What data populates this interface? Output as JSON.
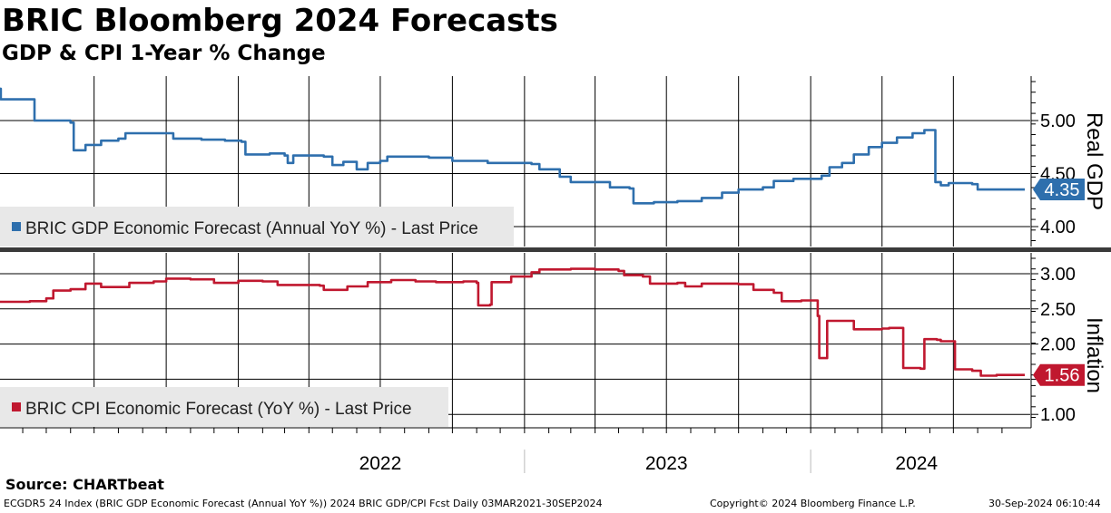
{
  "title": "BRIC Bloomberg 2024 Forecasts",
  "subtitle": "GDP & CPI 1-Year % Change",
  "source": "Source: CHARTbeat",
  "footer": {
    "left": "ECGDR5 24 Index (BRIC GDP Economic Forecast (Annual YoY %)) 2024 BRIC GDP/CPI Fcst  Daily 03MAR2021-30SEP2024",
    "middle": "Copyright© 2024 Bloomberg Finance L.P.",
    "right": "30-Sep-2024 06:10:44"
  },
  "colors": {
    "gdp": "#2e6fad",
    "cpi": "#c0182f",
    "grid": "#000000",
    "legend_bg": "#e8e8e8",
    "divider": "#3a3a3a"
  },
  "chart_data": [
    {
      "type": "line",
      "panel": "top",
      "axis_title": "Real GDP",
      "ylim": [
        3.8,
        5.4
      ],
      "yticks": [
        "5.00",
        "4.50",
        "4.00"
      ],
      "last_value_label": "4.35",
      "grid": true,
      "legend_placement": "lower-left",
      "series": [
        {
          "name": "BRIC GDP Economic Forecast (Annual YoY %) - Last Price",
          "color": "#2e6fad",
          "points": [
            [
              "2021-03-03",
              5.3
            ],
            [
              "2021-03-04",
              5.2
            ],
            [
              "2021-04-15",
              5.2
            ],
            [
              "2021-04-16",
              5.0
            ],
            [
              "2021-06-01",
              4.98
            ],
            [
              "2021-06-05",
              4.72
            ],
            [
              "2021-06-20",
              4.77
            ],
            [
              "2021-07-10",
              4.81
            ],
            [
              "2021-08-01",
              4.83
            ],
            [
              "2021-08-10",
              4.88
            ],
            [
              "2021-10-01",
              4.88
            ],
            [
              "2021-10-10",
              4.83
            ],
            [
              "2021-11-15",
              4.82
            ],
            [
              "2021-12-15",
              4.81
            ],
            [
              "2022-01-05",
              4.8
            ],
            [
              "2022-01-10",
              4.68
            ],
            [
              "2022-02-10",
              4.69
            ],
            [
              "2022-03-01",
              4.67
            ],
            [
              "2022-03-05",
              4.6
            ],
            [
              "2022-03-12",
              4.67
            ],
            [
              "2022-04-20",
              4.66
            ],
            [
              "2022-05-01",
              4.58
            ],
            [
              "2022-05-15",
              4.61
            ],
            [
              "2022-06-01",
              4.54
            ],
            [
              "2022-06-15",
              4.6
            ],
            [
              "2022-07-01",
              4.62
            ],
            [
              "2022-07-10",
              4.66
            ],
            [
              "2022-09-01",
              4.65
            ],
            [
              "2022-10-01",
              4.62
            ],
            [
              "2022-11-15",
              4.6
            ],
            [
              "2023-01-10",
              4.59
            ],
            [
              "2023-01-20",
              4.54
            ],
            [
              "2023-02-15",
              4.47
            ],
            [
              "2023-03-01",
              4.42
            ],
            [
              "2023-04-15",
              4.42
            ],
            [
              "2023-04-20",
              4.37
            ],
            [
              "2023-05-15",
              4.36
            ],
            [
              "2023-05-20",
              4.22
            ],
            [
              "2023-06-15",
              4.23
            ],
            [
              "2023-07-15",
              4.24
            ],
            [
              "2023-08-15",
              4.27
            ],
            [
              "2023-09-10",
              4.32
            ],
            [
              "2023-10-01",
              4.35
            ],
            [
              "2023-11-01",
              4.37
            ],
            [
              "2023-11-15",
              4.43
            ],
            [
              "2023-12-10",
              4.45
            ],
            [
              "2024-01-15",
              4.48
            ],
            [
              "2024-01-25",
              4.56
            ],
            [
              "2024-02-10",
              4.6
            ],
            [
              "2024-02-25",
              4.68
            ],
            [
              "2024-03-15",
              4.75
            ],
            [
              "2024-04-01",
              4.79
            ],
            [
              "2024-04-20",
              4.84
            ],
            [
              "2024-05-10",
              4.88
            ],
            [
              "2024-05-25",
              4.91
            ],
            [
              "2024-06-05",
              4.91
            ],
            [
              "2024-06-08",
              4.42
            ],
            [
              "2024-06-15",
              4.39
            ],
            [
              "2024-06-25",
              4.41
            ],
            [
              "2024-07-25",
              4.4
            ],
            [
              "2024-08-01",
              4.35
            ],
            [
              "2024-09-30",
              4.35
            ]
          ]
        }
      ]
    },
    {
      "type": "line",
      "panel": "bottom",
      "axis_title": "Inflation",
      "ylim": [
        0.8,
        3.3
      ],
      "yticks": [
        "3.00",
        "2.50",
        "2.00",
        "1.50",
        "1.00"
      ],
      "last_value_label": "1.56",
      "grid": true,
      "legend_placement": "lower-left",
      "x_tick_labels": [
        "2022",
        "2023",
        "2024"
      ],
      "series": [
        {
          "name": "BRIC CPI Economic Forecast (YoY %) - Last Price",
          "color": "#c0182f",
          "points": [
            [
              "2021-03-03",
              2.6
            ],
            [
              "2021-04-10",
              2.61
            ],
            [
              "2021-05-01",
              2.65
            ],
            [
              "2021-05-10",
              2.76
            ],
            [
              "2021-06-01",
              2.78
            ],
            [
              "2021-06-20",
              2.86
            ],
            [
              "2021-07-10",
              2.81
            ],
            [
              "2021-08-15",
              2.87
            ],
            [
              "2021-09-15",
              2.89
            ],
            [
              "2021-10-01",
              2.93
            ],
            [
              "2021-11-01",
              2.92
            ],
            [
              "2021-12-01",
              2.87
            ],
            [
              "2022-01-01",
              2.9
            ],
            [
              "2022-02-01",
              2.89
            ],
            [
              "2022-02-20",
              2.84
            ],
            [
              "2022-04-15",
              2.83
            ],
            [
              "2022-04-20",
              2.77
            ],
            [
              "2022-05-20",
              2.82
            ],
            [
              "2022-06-15",
              2.88
            ],
            [
              "2022-07-15",
              2.91
            ],
            [
              "2022-08-15",
              2.89
            ],
            [
              "2022-09-10",
              2.88
            ],
            [
              "2022-10-15",
              2.89
            ],
            [
              "2022-11-01",
              2.87
            ],
            [
              "2022-11-03",
              2.55
            ],
            [
              "2022-11-18",
              2.56
            ],
            [
              "2022-11-20",
              2.88
            ],
            [
              "2022-12-15",
              2.96
            ],
            [
              "2023-01-10",
              3.02
            ],
            [
              "2023-01-20",
              3.06
            ],
            [
              "2023-03-01",
              3.07
            ],
            [
              "2023-04-01",
              3.06
            ],
            [
              "2023-05-01",
              3.04
            ],
            [
              "2023-05-08",
              2.98
            ],
            [
              "2023-06-01",
              2.96
            ],
            [
              "2023-06-10",
              2.86
            ],
            [
              "2023-07-15",
              2.87
            ],
            [
              "2023-07-25",
              2.82
            ],
            [
              "2023-08-15",
              2.86
            ],
            [
              "2023-09-01",
              2.86
            ],
            [
              "2023-10-01",
              2.85
            ],
            [
              "2023-10-20",
              2.77
            ],
            [
              "2023-11-15",
              2.73
            ],
            [
              "2023-11-25",
              2.61
            ],
            [
              "2023-12-20",
              2.62
            ],
            [
              "2024-01-05",
              2.62
            ],
            [
              "2024-01-10",
              2.4
            ],
            [
              "2024-01-12",
              1.8
            ],
            [
              "2024-01-18",
              1.8
            ],
            [
              "2024-01-22",
              2.33
            ],
            [
              "2024-02-20",
              2.33
            ],
            [
              "2024-02-25",
              2.21
            ],
            [
              "2024-04-01",
              2.22
            ],
            [
              "2024-04-10",
              2.23
            ],
            [
              "2024-04-25",
              2.23
            ],
            [
              "2024-04-28",
              1.66
            ],
            [
              "2024-05-20",
              1.65
            ],
            [
              "2024-05-25",
              2.07
            ],
            [
              "2024-06-10",
              2.06
            ],
            [
              "2024-06-15",
              2.04
            ],
            [
              "2024-06-30",
              2.04
            ],
            [
              "2024-07-03",
              1.64
            ],
            [
              "2024-07-25",
              1.62
            ],
            [
              "2024-08-05",
              1.55
            ],
            [
              "2024-08-25",
              1.56
            ],
            [
              "2024-09-30",
              1.56
            ]
          ]
        }
      ]
    }
  ]
}
